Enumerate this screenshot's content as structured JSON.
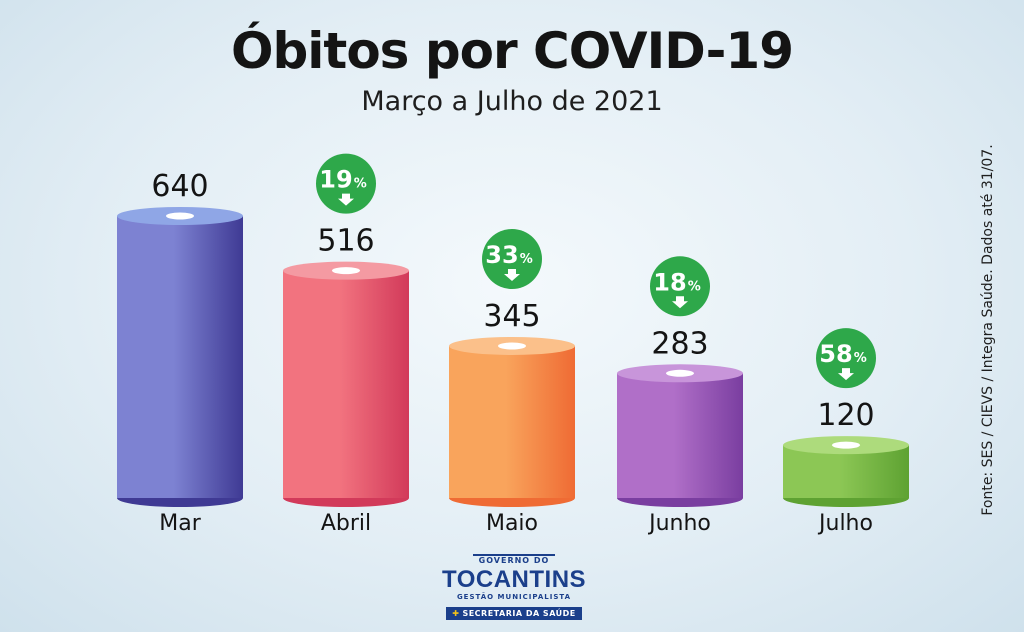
{
  "chart_data": {
    "type": "bar",
    "title": "Óbitos por COVID-19",
    "subtitle": "Março a Julho de 2021",
    "categories": [
      "Mar",
      "Abril",
      "Maio",
      "Junho",
      "Julho"
    ],
    "values": [
      640,
      516,
      345,
      283,
      120
    ],
    "changes": [
      "",
      "19%",
      "33%",
      "18%",
      "58%"
    ],
    "ylim": [
      0,
      640
    ],
    "source": "Fonte: SES / CIEVS / Integra Saúde. Dados até 31/07.",
    "colors": [
      {
        "light": "#7d82d2",
        "dark": "#3f3a94",
        "top": "#8fa6e6"
      },
      {
        "light": "#f2737f",
        "dark": "#d23a5a",
        "top": "#f49aa2"
      },
      {
        "light": "#f9a45c",
        "dark": "#ef6b34",
        "top": "#fbc08a"
      },
      {
        "light": "#b06fc8",
        "dark": "#7a3ea0",
        "top": "#c895da"
      },
      {
        "light": "#8cc755",
        "dark": "#5ea232",
        "top": "#addb7c"
      }
    ],
    "badge_color": "#2ea84a"
  },
  "logo": {
    "top": "GOVERNO DO",
    "name": "TOCANTINS",
    "tagline": "GESTÃO MUNICIPALISTA",
    "dept": "SECRETARIA DA SAÚDE"
  }
}
